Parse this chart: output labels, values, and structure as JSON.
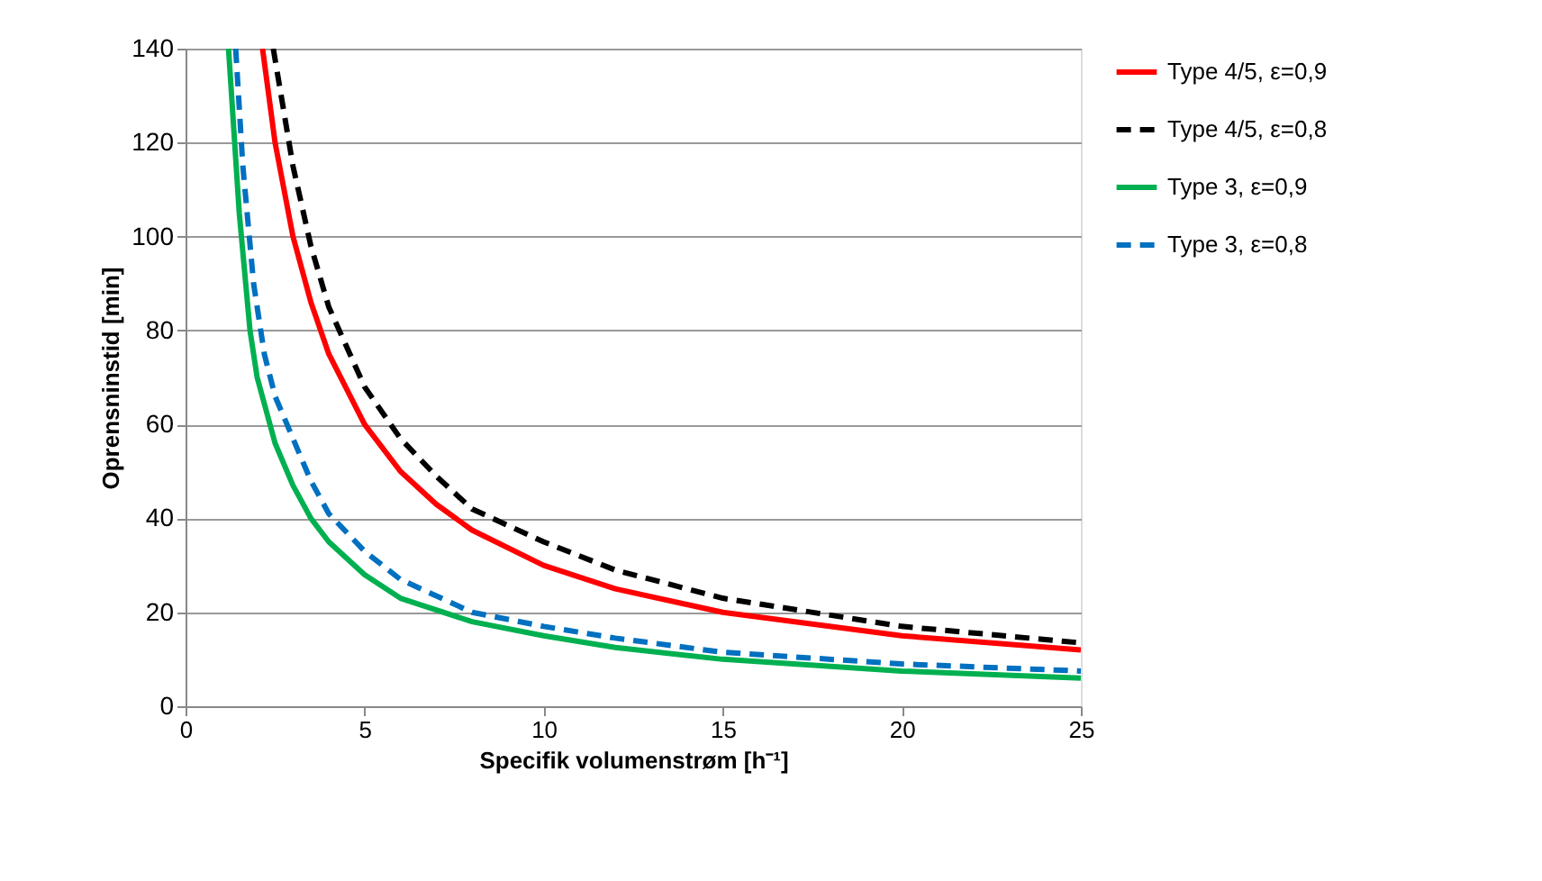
{
  "chart_data": {
    "type": "line",
    "xlabel": "Specifik volumenstrøm [h⁻¹]",
    "ylabel": "Oprensninstid [min]",
    "xlim": [
      0,
      25
    ],
    "xticks": [
      0,
      5,
      10,
      15,
      20,
      25
    ],
    "ylim": [
      0,
      140
    ],
    "yticks": [
      0,
      20,
      40,
      60,
      80,
      100,
      120,
      140
    ],
    "grid": "y",
    "legend": "right",
    "marker": "none",
    "series": [
      {
        "name": "Type 4/5, ε=0,9",
        "color": "#ff0000",
        "line_style": "solid",
        "x": [
          2.15,
          2.5,
          3,
          3.5,
          4,
          5,
          6,
          7,
          8,
          10,
          12,
          15,
          20,
          25
        ],
        "values": [
          140,
          120,
          100,
          86,
          75,
          60,
          50,
          43,
          37.5,
          30,
          25,
          20,
          15,
          12
        ]
      },
      {
        "name": "Type 4/5, ε=0,8",
        "color": "#000000",
        "line_style": "dashed",
        "x": [
          2.45,
          3,
          3.5,
          4,
          5,
          6,
          7,
          8,
          10,
          12,
          15,
          20,
          25
        ],
        "values": [
          140,
          115,
          98,
          85,
          68,
          57,
          49,
          42,
          35,
          29,
          23,
          17,
          13.5
        ]
      },
      {
        "name": "Type 3, ε=0,9",
        "color": "#00b050",
        "line_style": "solid",
        "x": [
          1.2,
          1.5,
          1.8,
          2,
          2.5,
          3,
          3.5,
          4,
          5,
          6,
          8,
          10,
          12,
          15,
          20,
          25
        ],
        "values": [
          140,
          105,
          80,
          70,
          56,
          47,
          40,
          35,
          28,
          23,
          18,
          15,
          12.5,
          10,
          7.5,
          6
        ]
      },
      {
        "name": "Type 3, ε=0,8",
        "color": "#0070c0",
        "line_style": "dashed",
        "x": [
          1.4,
          1.6,
          1.9,
          2.2,
          2.5,
          3,
          3.5,
          4,
          5,
          6,
          8,
          10,
          12,
          15,
          20,
          25
        ],
        "values": [
          140,
          115,
          90,
          75,
          66,
          57,
          48,
          41,
          33,
          27,
          20,
          17,
          14.5,
          11.5,
          9,
          7.5
        ]
      }
    ]
  }
}
